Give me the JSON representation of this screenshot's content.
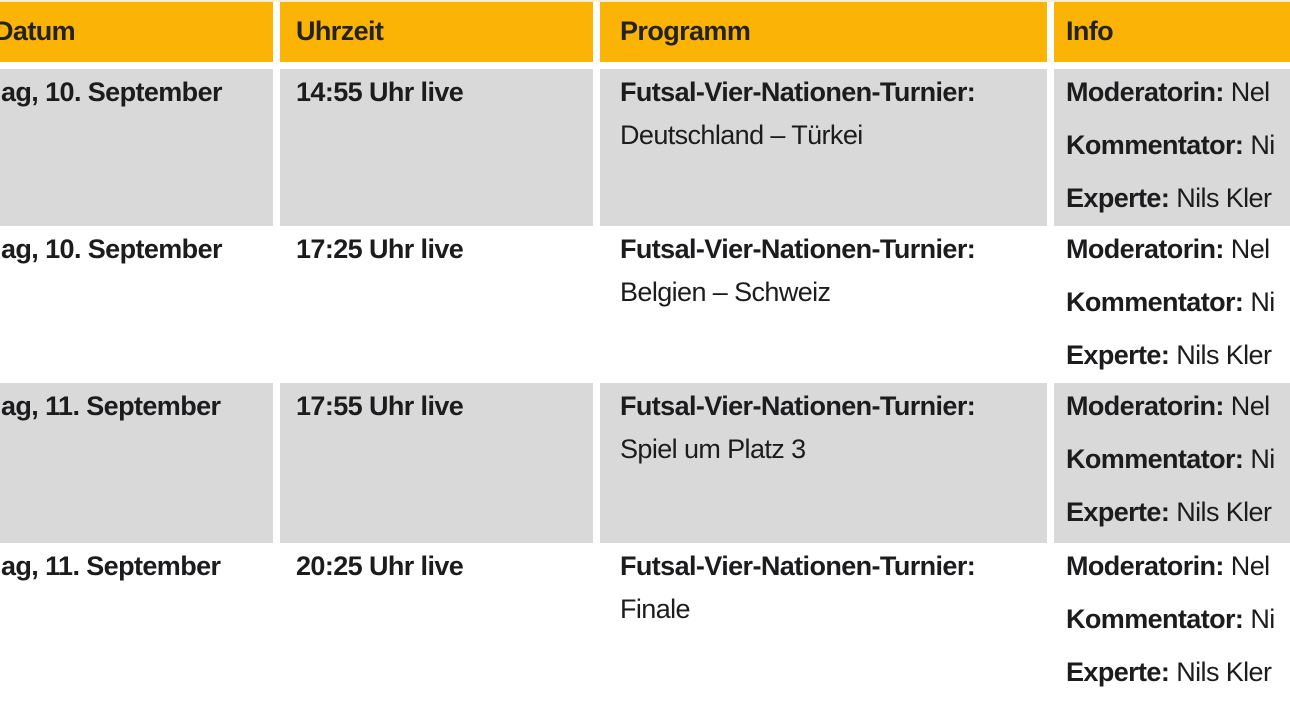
{
  "colors": {
    "header_bg": "#FBB306",
    "row_gray_bg": "#D9D9D9",
    "row_white_bg": "#FFFFFF",
    "text": "#1C1C1E"
  },
  "table": {
    "headers": {
      "datum": "Datum",
      "uhrzeit": "Uhrzeit",
      "programm": "Programm",
      "info": "Info"
    },
    "rows": [
      {
        "datum": "ag, 10. September",
        "uhrzeit": "14:55 Uhr live",
        "programm_title": "Futsal-Vier-Nationen-Turnier:",
        "programm_detail": "Deutschland – Türkei",
        "info": [
          {
            "label": "Moderatorin:",
            "value": "Nel"
          },
          {
            "label": "Kommentator:",
            "value": "Ni"
          },
          {
            "label": "Experte:",
            "value": "Nils Kler"
          }
        ]
      },
      {
        "datum": "ag, 10. September",
        "uhrzeit": "17:25 Uhr live",
        "programm_title": "Futsal-Vier-Nationen-Turnier:",
        "programm_detail": "Belgien – Schweiz",
        "info": [
          {
            "label": "Moderatorin:",
            "value": "Nel"
          },
          {
            "label": "Kommentator:",
            "value": "Ni"
          },
          {
            "label": "Experte:",
            "value": "Nils Kler"
          }
        ]
      },
      {
        "datum": "ag, 11. September",
        "uhrzeit": "17:55 Uhr live",
        "programm_title": "Futsal-Vier-Nationen-Turnier:",
        "programm_detail": "Spiel um Platz 3",
        "info": [
          {
            "label": "Moderatorin:",
            "value": "Nel"
          },
          {
            "label": "Kommentator:",
            "value": "Ni"
          },
          {
            "label": "Experte:",
            "value": "Nils Kler"
          }
        ]
      },
      {
        "datum": "ag, 11. September",
        "uhrzeit": "20:25 Uhr live",
        "programm_title": "Futsal-Vier-Nationen-Turnier:",
        "programm_detail": "Finale",
        "info": [
          {
            "label": "Moderatorin:",
            "value": "Nel"
          },
          {
            "label": "Kommentator:",
            "value": "Ni"
          },
          {
            "label": "Experte:",
            "value": "Nils Kler"
          }
        ]
      }
    ]
  }
}
